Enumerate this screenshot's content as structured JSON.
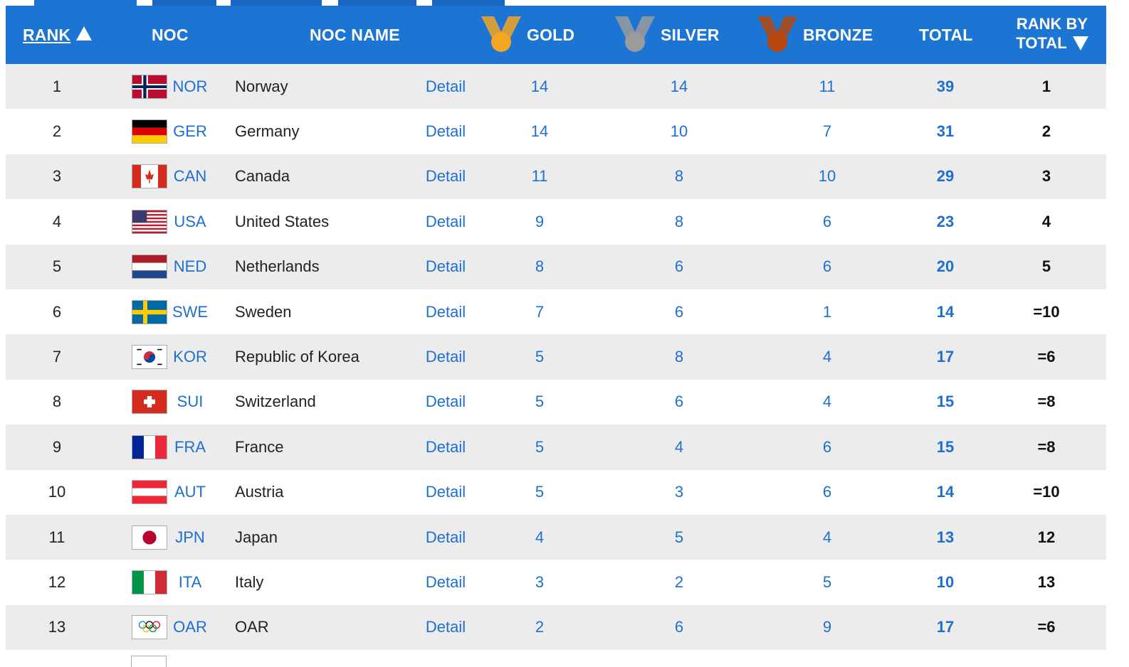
{
  "header": {
    "rank": "RANK",
    "noc": "NOC",
    "noc_name": "NOC NAME",
    "gold": "GOLD",
    "silver": "SILVER",
    "bronze": "BRONZE",
    "total": "TOTAL",
    "rank_by_total_line1": "RANK BY",
    "rank_by_total_line2": "TOTAL"
  },
  "colors": {
    "header_bg": "#1c74d3",
    "link": "#1d6fd0",
    "gold": "#f5a623",
    "silver": "#9b9b9b",
    "bronze": "#b5470f"
  },
  "rows": [
    {
      "rank": "1",
      "noc": "NOR",
      "name": "Norway",
      "detail": "Detail",
      "gold": "14",
      "silver": "14",
      "bronze": "11",
      "total": "39",
      "rbt": "1",
      "flag": "norway-flag-icon"
    },
    {
      "rank": "2",
      "noc": "GER",
      "name": "Germany",
      "detail": "Detail",
      "gold": "14",
      "silver": "10",
      "bronze": "7",
      "total": "31",
      "rbt": "2",
      "flag": "germany-flag-icon"
    },
    {
      "rank": "3",
      "noc": "CAN",
      "name": "Canada",
      "detail": "Detail",
      "gold": "11",
      "silver": "8",
      "bronze": "10",
      "total": "29",
      "rbt": "3",
      "flag": "canada-flag-icon"
    },
    {
      "rank": "4",
      "noc": "USA",
      "name": "United States",
      "detail": "Detail",
      "gold": "9",
      "silver": "8",
      "bronze": "6",
      "total": "23",
      "rbt": "4",
      "flag": "usa-flag-icon"
    },
    {
      "rank": "5",
      "noc": "NED",
      "name": "Netherlands",
      "detail": "Detail",
      "gold": "8",
      "silver": "6",
      "bronze": "6",
      "total": "20",
      "rbt": "5",
      "flag": "netherlands-flag-icon"
    },
    {
      "rank": "6",
      "noc": "SWE",
      "name": "Sweden",
      "detail": "Detail",
      "gold": "7",
      "silver": "6",
      "bronze": "1",
      "total": "14",
      "rbt": "=10",
      "flag": "sweden-flag-icon"
    },
    {
      "rank": "7",
      "noc": "KOR",
      "name": "Republic of Korea",
      "detail": "Detail",
      "gold": "5",
      "silver": "8",
      "bronze": "4",
      "total": "17",
      "rbt": "=6",
      "flag": "korea-flag-icon"
    },
    {
      "rank": "8",
      "noc": "SUI",
      "name": "Switzerland",
      "detail": "Detail",
      "gold": "5",
      "silver": "6",
      "bronze": "4",
      "total": "15",
      "rbt": "=8",
      "flag": "switzerland-flag-icon"
    },
    {
      "rank": "9",
      "noc": "FRA",
      "name": "France",
      "detail": "Detail",
      "gold": "5",
      "silver": "4",
      "bronze": "6",
      "total": "15",
      "rbt": "=8",
      "flag": "france-flag-icon"
    },
    {
      "rank": "10",
      "noc": "AUT",
      "name": "Austria",
      "detail": "Detail",
      "gold": "5",
      "silver": "3",
      "bronze": "6",
      "total": "14",
      "rbt": "=10",
      "flag": "austria-flag-icon"
    },
    {
      "rank": "11",
      "noc": "JPN",
      "name": "Japan",
      "detail": "Detail",
      "gold": "4",
      "silver": "5",
      "bronze": "4",
      "total": "13",
      "rbt": "12",
      "flag": "japan-flag-icon"
    },
    {
      "rank": "12",
      "noc": "ITA",
      "name": "Italy",
      "detail": "Detail",
      "gold": "3",
      "silver": "2",
      "bronze": "5",
      "total": "10",
      "rbt": "13",
      "flag": "italy-flag-icon"
    },
    {
      "rank": "13",
      "noc": "OAR",
      "name": "OAR",
      "detail": "Detail",
      "gold": "2",
      "silver": "6",
      "bronze": "9",
      "total": "17",
      "rbt": "=6",
      "flag": "olympic-rings-flag-icon"
    }
  ]
}
